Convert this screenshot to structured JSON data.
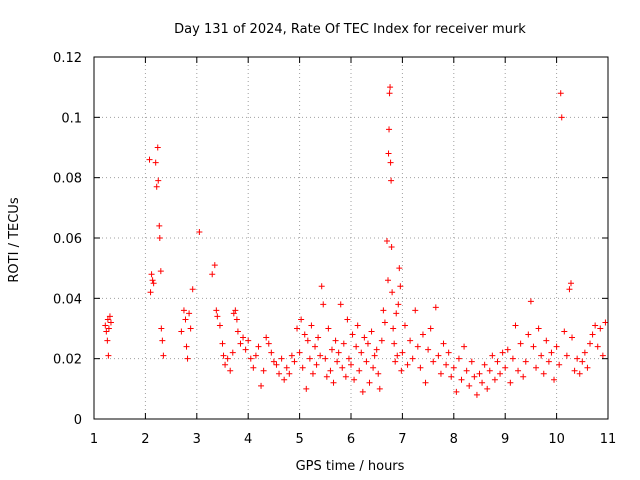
{
  "chart_data": {
    "type": "scatter",
    "title": "Day 131 of 2024, Rate Of TEC Index for receiver murk",
    "xlabel": "GPS time / hours",
    "ylabel": "ROTI / TECUs",
    "xlim": [
      1,
      11
    ],
    "ylim": [
      0,
      0.12
    ],
    "x_ticks": [
      1,
      2,
      3,
      4,
      5,
      6,
      7,
      8,
      9,
      10,
      11
    ],
    "x_tick_labels": [
      "1",
      "2",
      "3",
      "4",
      "5",
      "6",
      "7",
      "8",
      "9",
      "10",
      "11"
    ],
    "y_ticks": [
      0,
      0.02,
      0.04,
      0.06,
      0.08,
      0.1,
      0.12
    ],
    "y_tick_labels": [
      "0",
      "0.02",
      "0.04",
      "0.06",
      "0.08",
      "0.1",
      "0.12"
    ],
    "grid": true,
    "marker": "+",
    "color": "#ff0000",
    "series": [
      {
        "name": "ROTI",
        "points": [
          [
            1.22,
            0.031
          ],
          [
            1.24,
            0.029
          ],
          [
            1.26,
            0.026
          ],
          [
            1.27,
            0.033
          ],
          [
            1.28,
            0.021
          ],
          [
            1.29,
            0.03
          ],
          [
            1.31,
            0.034
          ],
          [
            1.33,
            0.032
          ],
          [
            2.08,
            0.086
          ],
          [
            2.1,
            0.042
          ],
          [
            2.12,
            0.048
          ],
          [
            2.14,
            0.046
          ],
          [
            2.16,
            0.045
          ],
          [
            2.2,
            0.085
          ],
          [
            2.22,
            0.077
          ],
          [
            2.24,
            0.09
          ],
          [
            2.25,
            0.079
          ],
          [
            2.27,
            0.064
          ],
          [
            2.28,
            0.06
          ],
          [
            2.3,
            0.049
          ],
          [
            2.31,
            0.03
          ],
          [
            2.33,
            0.026
          ],
          [
            2.35,
            0.021
          ],
          [
            2.7,
            0.029
          ],
          [
            2.75,
            0.036
          ],
          [
            2.78,
            0.033
          ],
          [
            2.8,
            0.024
          ],
          [
            2.82,
            0.02
          ],
          [
            2.85,
            0.035
          ],
          [
            2.88,
            0.03
          ],
          [
            2.92,
            0.043
          ],
          [
            3.05,
            0.062
          ],
          [
            3.3,
            0.048
          ],
          [
            3.35,
            0.051
          ],
          [
            3.38,
            0.036
          ],
          [
            3.4,
            0.034
          ],
          [
            3.45,
            0.031
          ],
          [
            3.5,
            0.025
          ],
          [
            3.52,
            0.021
          ],
          [
            3.55,
            0.018
          ],
          [
            3.6,
            0.02
          ],
          [
            3.65,
            0.016
          ],
          [
            3.7,
            0.022
          ],
          [
            3.72,
            0.035
          ],
          [
            3.75,
            0.036
          ],
          [
            3.78,
            0.033
          ],
          [
            3.8,
            0.029
          ],
          [
            3.85,
            0.025
          ],
          [
            3.9,
            0.027
          ],
          [
            3.95,
            0.023
          ],
          [
            4.0,
            0.026
          ],
          [
            4.05,
            0.02
          ],
          [
            4.1,
            0.017
          ],
          [
            4.15,
            0.021
          ],
          [
            4.2,
            0.024
          ],
          [
            4.25,
            0.011
          ],
          [
            4.3,
            0.016
          ],
          [
            4.35,
            0.027
          ],
          [
            4.4,
            0.025
          ],
          [
            4.45,
            0.022
          ],
          [
            4.5,
            0.019
          ],
          [
            4.55,
            0.018
          ],
          [
            4.6,
            0.015
          ],
          [
            4.65,
            0.02
          ],
          [
            4.7,
            0.013
          ],
          [
            4.75,
            0.017
          ],
          [
            4.8,
            0.015
          ],
          [
            4.85,
            0.021
          ],
          [
            4.9,
            0.019
          ],
          [
            4.95,
            0.03
          ],
          [
            5.0,
            0.022
          ],
          [
            5.03,
            0.033
          ],
          [
            5.06,
            0.017
          ],
          [
            5.1,
            0.028
          ],
          [
            5.13,
            0.01
          ],
          [
            5.16,
            0.026
          ],
          [
            5.2,
            0.02
          ],
          [
            5.23,
            0.031
          ],
          [
            5.26,
            0.015
          ],
          [
            5.3,
            0.024
          ],
          [
            5.33,
            0.018
          ],
          [
            5.36,
            0.027
          ],
          [
            5.4,
            0.021
          ],
          [
            5.43,
            0.044
          ],
          [
            5.46,
            0.038
          ],
          [
            5.5,
            0.02
          ],
          [
            5.53,
            0.014
          ],
          [
            5.56,
            0.03
          ],
          [
            5.6,
            0.016
          ],
          [
            5.63,
            0.023
          ],
          [
            5.66,
            0.012
          ],
          [
            5.7,
            0.026
          ],
          [
            5.73,
            0.019
          ],
          [
            5.76,
            0.022
          ],
          [
            5.8,
            0.038
          ],
          [
            5.83,
            0.017
          ],
          [
            5.86,
            0.025
          ],
          [
            5.9,
            0.014
          ],
          [
            5.93,
            0.033
          ],
          [
            5.96,
            0.02
          ],
          [
            6.0,
            0.018
          ],
          [
            6.03,
            0.028
          ],
          [
            6.06,
            0.013
          ],
          [
            6.1,
            0.024
          ],
          [
            6.13,
            0.031
          ],
          [
            6.16,
            0.016
          ],
          [
            6.2,
            0.022
          ],
          [
            6.23,
            0.009
          ],
          [
            6.26,
            0.027
          ],
          [
            6.3,
            0.019
          ],
          [
            6.33,
            0.025
          ],
          [
            6.36,
            0.012
          ],
          [
            6.4,
            0.029
          ],
          [
            6.43,
            0.017
          ],
          [
            6.46,
            0.021
          ],
          [
            6.5,
            0.023
          ],
          [
            6.53,
            0.015
          ],
          [
            6.56,
            0.01
          ],
          [
            6.6,
            0.026
          ],
          [
            6.63,
            0.036
          ],
          [
            6.66,
            0.032
          ],
          [
            6.7,
            0.059
          ],
          [
            6.72,
            0.046
          ],
          [
            6.73,
            0.088
          ],
          [
            6.74,
            0.096
          ],
          [
            6.75,
            0.108
          ],
          [
            6.76,
            0.11
          ],
          [
            6.77,
            0.085
          ],
          [
            6.78,
            0.079
          ],
          [
            6.79,
            0.057
          ],
          [
            6.8,
            0.042
          ],
          [
            6.82,
            0.03
          ],
          [
            6.84,
            0.025
          ],
          [
            6.86,
            0.019
          ],
          [
            6.88,
            0.035
          ],
          [
            6.9,
            0.021
          ],
          [
            6.92,
            0.038
          ],
          [
            6.94,
            0.05
          ],
          [
            6.96,
            0.044
          ],
          [
            6.98,
            0.016
          ],
          [
            7.0,
            0.022
          ],
          [
            7.05,
            0.031
          ],
          [
            7.1,
            0.018
          ],
          [
            7.15,
            0.026
          ],
          [
            7.2,
            0.02
          ],
          [
            7.25,
            0.036
          ],
          [
            7.3,
            0.024
          ],
          [
            7.35,
            0.017
          ],
          [
            7.4,
            0.028
          ],
          [
            7.45,
            0.012
          ],
          [
            7.5,
            0.023
          ],
          [
            7.55,
            0.03
          ],
          [
            7.6,
            0.019
          ],
          [
            7.65,
            0.037
          ],
          [
            7.7,
            0.021
          ],
          [
            7.75,
            0.015
          ],
          [
            7.8,
            0.025
          ],
          [
            7.85,
            0.018
          ],
          [
            7.9,
            0.022
          ],
          [
            7.95,
            0.014
          ],
          [
            8.0,
            0.017
          ],
          [
            8.05,
            0.009
          ],
          [
            8.1,
            0.02
          ],
          [
            8.15,
            0.013
          ],
          [
            8.2,
            0.024
          ],
          [
            8.25,
            0.016
          ],
          [
            8.3,
            0.011
          ],
          [
            8.35,
            0.019
          ],
          [
            8.4,
            0.014
          ],
          [
            8.45,
            0.008
          ],
          [
            8.5,
            0.015
          ],
          [
            8.55,
            0.012
          ],
          [
            8.6,
            0.018
          ],
          [
            8.65,
            0.01
          ],
          [
            8.7,
            0.016
          ],
          [
            8.75,
            0.021
          ],
          [
            8.8,
            0.013
          ],
          [
            8.85,
            0.019
          ],
          [
            8.9,
            0.015
          ],
          [
            8.95,
            0.022
          ],
          [
            9.0,
            0.017
          ],
          [
            9.05,
            0.023
          ],
          [
            9.1,
            0.012
          ],
          [
            9.15,
            0.02
          ],
          [
            9.2,
            0.031
          ],
          [
            9.25,
            0.016
          ],
          [
            9.3,
            0.025
          ],
          [
            9.35,
            0.014
          ],
          [
            9.4,
            0.019
          ],
          [
            9.45,
            0.028
          ],
          [
            9.5,
            0.039
          ],
          [
            9.55,
            0.024
          ],
          [
            9.6,
            0.017
          ],
          [
            9.65,
            0.03
          ],
          [
            9.7,
            0.021
          ],
          [
            9.75,
            0.015
          ],
          [
            9.8,
            0.026
          ],
          [
            9.85,
            0.019
          ],
          [
            9.9,
            0.022
          ],
          [
            9.95,
            0.013
          ],
          [
            10.0,
            0.024
          ],
          [
            10.05,
            0.018
          ],
          [
            10.08,
            0.108
          ],
          [
            10.1,
            0.1
          ],
          [
            10.15,
            0.029
          ],
          [
            10.2,
            0.021
          ],
          [
            10.25,
            0.043
          ],
          [
            10.28,
            0.045
          ],
          [
            10.3,
            0.027
          ],
          [
            10.35,
            0.016
          ],
          [
            10.4,
            0.02
          ],
          [
            10.45,
            0.015
          ],
          [
            10.5,
            0.019
          ],
          [
            10.55,
            0.022
          ],
          [
            10.6,
            0.017
          ],
          [
            10.65,
            0.025
          ],
          [
            10.7,
            0.028
          ],
          [
            10.75,
            0.031
          ],
          [
            10.8,
            0.024
          ],
          [
            10.85,
            0.03
          ],
          [
            10.9,
            0.021
          ],
          [
            10.95,
            0.032
          ]
        ]
      }
    ]
  }
}
